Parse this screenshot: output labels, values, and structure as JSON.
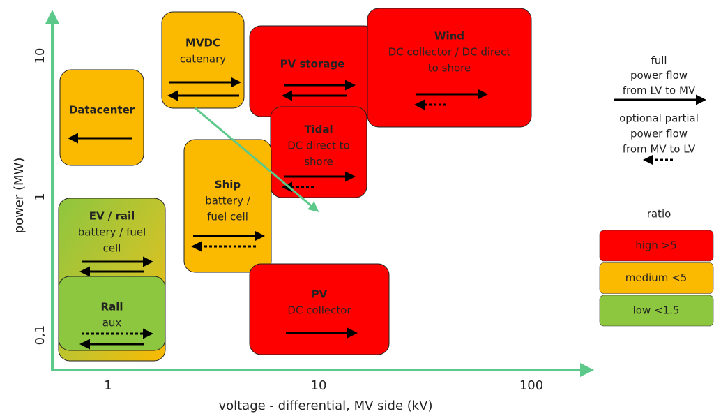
{
  "axes": {
    "x_label": "voltage - differential, MV side (kV)",
    "y_label": "power (MW)",
    "x_ticks": [
      "1",
      "10",
      "100"
    ],
    "y_ticks": [
      "10",
      "1",
      "0,1"
    ]
  },
  "boxes": [
    {
      "title": "Datacenter",
      "lines": []
    },
    {
      "title": "MVDC",
      "lines": [
        "catenary"
      ]
    },
    {
      "title": "PV storage",
      "lines": []
    },
    {
      "title": "Wind",
      "lines": [
        "DC collector / DC direct",
        "to shore"
      ]
    },
    {
      "title": "Tidal",
      "lines": [
        "DC direct to",
        "shore"
      ]
    },
    {
      "title": "Ship",
      "lines": [
        "battery /",
        "fuel cell"
      ]
    },
    {
      "title": "EV / rail",
      "lines": [
        "battery / fuel",
        "cell"
      ]
    },
    {
      "title": "Rail",
      "lines": [
        "aux"
      ]
    },
    {
      "title": "PV",
      "lines": [
        "DC collector"
      ]
    }
  ],
  "legend": {
    "full_flow": [
      "full",
      "power flow",
      "from LV to MV"
    ],
    "partial_flow": [
      "optional partial",
      "power flow",
      "from MV to LV"
    ],
    "ratio_title": "ratio",
    "ratio": [
      "high >5",
      "medium <5",
      "low <1.5"
    ]
  }
}
